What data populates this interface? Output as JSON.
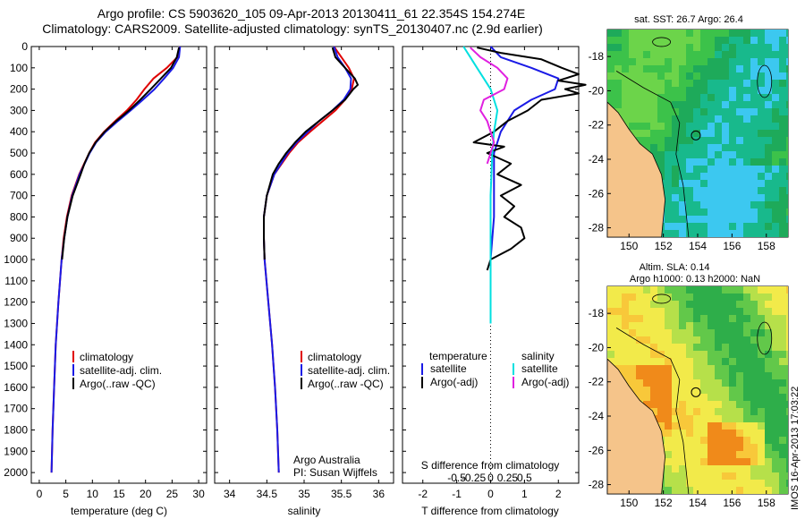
{
  "title_lines": [
    "Argo profile: CS 5903620_105 09-Apr-2013 20130411_61 22.354S 154.274E",
    "Climatology: CARS2009. Satellite-adjusted climatology: synTS_20130407.nc (2.9d earlier)"
  ],
  "colors": {
    "climatology": "#e00000",
    "satellite": "#1a1ae6",
    "argo": "#000000",
    "salinity_satellite": "#00e0e0",
    "salinity_argo": "#e020e0"
  },
  "chart_data": [
    {
      "type": "line",
      "panel": "temperature",
      "title": "",
      "xlabel": "temperature (deg C)",
      "ylabel": "",
      "xlim": [
        -1.5,
        31.5
      ],
      "ylim": [
        2050,
        0
      ],
      "xticks": [
        0,
        5,
        10,
        15,
        20,
        25,
        30
      ],
      "yticks": [
        0,
        100,
        200,
        300,
        400,
        500,
        600,
        700,
        800,
        900,
        1000,
        1100,
        1200,
        1300,
        1400,
        1500,
        1600,
        1700,
        1800,
        1900,
        2000
      ],
      "legend": [
        "climatology",
        "satellite-adj. clim.",
        "Argo(..raw -QC)"
      ],
      "series": [
        {
          "name": "climatology",
          "depth": [
            0,
            50,
            100,
            150,
            200,
            250,
            300,
            350,
            400,
            450,
            500,
            600,
            700,
            800,
            900,
            1000,
            1200,
            1400,
            1600,
            1800,
            2000
          ],
          "values": [
            26.5,
            26.0,
            24.0,
            21.5,
            19.8,
            18.3,
            16.5,
            14.3,
            12.2,
            10.5,
            9.4,
            7.5,
            6.1,
            5.2,
            4.6,
            4.2,
            3.6,
            3.1,
            2.8,
            2.5,
            2.3
          ]
        },
        {
          "name": "satellite-adj. clim.",
          "depth": [
            0,
            50,
            100,
            150,
            200,
            250,
            300,
            350,
            400,
            450,
            500,
            600,
            700,
            800,
            900,
            1000,
            1200,
            1400,
            1600,
            1800,
            2000
          ],
          "values": [
            26.5,
            26.3,
            25.2,
            23.5,
            21.7,
            19.5,
            17.2,
            14.8,
            12.5,
            10.7,
            9.5,
            7.6,
            6.2,
            5.3,
            4.7,
            4.2,
            3.6,
            3.1,
            2.8,
            2.5,
            2.3
          ]
        },
        {
          "name": "Argo(..raw -QC)",
          "depth": [
            5,
            50,
            100,
            150,
            200,
            250,
            300,
            350,
            400,
            450,
            500,
            550,
            600,
            700,
            800,
            900,
            1000
          ],
          "values": [
            26.3,
            25.9,
            24.8,
            22.9,
            21.0,
            19.0,
            16.9,
            14.5,
            12.3,
            10.6,
            9.4,
            8.5,
            7.8,
            6.3,
            5.3,
            4.7,
            4.3
          ]
        }
      ]
    },
    {
      "type": "line",
      "panel": "salinity",
      "title": "",
      "xlabel": "salinity",
      "ylabel": "",
      "xlim": [
        33.8,
        36.2
      ],
      "ylim": [
        2050,
        0
      ],
      "xticks": [
        34,
        34.5,
        35,
        35.5,
        36
      ],
      "legend": [
        "climatology",
        "satellite-adj. clim.",
        "Argo(..raw -QC)"
      ],
      "annotation": [
        "Argo Australia",
        "PI: Susan Wijffels"
      ],
      "series": [
        {
          "name": "climatology",
          "depth": [
            0,
            50,
            100,
            150,
            200,
            250,
            300,
            350,
            400,
            450,
            500,
            600,
            700,
            800,
            900,
            1000,
            1200,
            1400,
            1600,
            1800,
            2000
          ],
          "values": [
            35.4,
            35.5,
            35.6,
            35.67,
            35.64,
            35.55,
            35.42,
            35.25,
            35.08,
            34.92,
            34.8,
            34.6,
            34.5,
            34.46,
            34.46,
            34.47,
            34.52,
            34.57,
            34.61,
            34.64,
            34.66
          ]
        },
        {
          "name": "satellite-adj. clim.",
          "depth": [
            0,
            50,
            100,
            150,
            200,
            250,
            300,
            350,
            400,
            450,
            500,
            600,
            700,
            800,
            900,
            1000,
            1200,
            1400,
            1600,
            1800,
            2000
          ],
          "values": [
            35.4,
            35.45,
            35.55,
            35.63,
            35.62,
            35.53,
            35.38,
            35.2,
            35.05,
            34.9,
            34.78,
            34.6,
            34.5,
            34.46,
            34.46,
            34.47,
            34.52,
            34.57,
            34.61,
            34.64,
            34.66
          ]
        },
        {
          "name": "Argo(..raw -QC)",
          "depth": [
            5,
            50,
            100,
            150,
            180,
            200,
            250,
            300,
            350,
            400,
            450,
            500,
            550,
            600,
            700,
            800,
            900,
            1000
          ],
          "values": [
            35.38,
            35.42,
            35.55,
            35.68,
            35.72,
            35.66,
            35.55,
            35.38,
            35.2,
            35.02,
            34.88,
            34.76,
            34.66,
            34.58,
            34.5,
            34.46,
            34.46,
            34.47
          ]
        }
      ]
    },
    {
      "type": "line",
      "panel": "difference",
      "title": "",
      "xlabel": "T difference from climatology",
      "xlabel_top": "S difference from climatology",
      "xlim": [
        -2.6,
        2.6
      ],
      "ylim": [
        2050,
        0
      ],
      "xticks": [
        -2,
        -1,
        0,
        1,
        2
      ],
      "xticklabels": [
        "-2",
        "-1",
        "0",
        "1",
        "2"
      ],
      "xticks_s": [
        -1.0,
        -0.5,
        0,
        0.5,
        1.0
      ],
      "xticklabels_s": [
        "-0.5",
        "-0.25",
        "0",
        "0.25",
        "0.5"
      ],
      "legend_groups": [
        {
          "header": "temperature",
          "items": [
            "satellite",
            "Argo(-adj)"
          ]
        },
        {
          "header": "salinity",
          "items": [
            "satellite",
            "Argo(-adj)"
          ]
        }
      ],
      "series": [
        {
          "name": "temperature satellite",
          "depth": [
            0,
            50,
            100,
            150,
            200,
            250,
            300,
            350,
            400,
            450,
            500,
            600,
            700,
            800,
            900,
            1000,
            1200,
            1300
          ],
          "values": [
            0.0,
            0.3,
            1.2,
            2.0,
            1.9,
            1.2,
            0.7,
            0.5,
            0.3,
            0.2,
            0.1,
            0.1,
            0.1,
            0.1,
            0.05,
            0.0,
            0.0,
            0.0
          ]
        },
        {
          "name": "temperature Argo(-adj)",
          "depth": [
            5,
            30,
            60,
            100,
            130,
            160,
            180,
            200,
            220,
            250,
            300,
            350,
            400,
            450,
            470,
            500,
            550,
            600,
            650,
            700,
            750,
            800,
            850,
            900,
            950,
            1000,
            1050
          ],
          "values": [
            -0.4,
            0.3,
            1.5,
            2.1,
            2.6,
            2.0,
            2.8,
            2.2,
            2.6,
            1.5,
            1.1,
            0.5,
            0.1,
            -0.5,
            0.4,
            -0.1,
            0.6,
            0.2,
            0.9,
            0.3,
            0.7,
            0.4,
            0.9,
            1.0,
            0.6,
            0.0,
            -0.1
          ]
        },
        {
          "name": "salinity satellite",
          "depth": [
            0,
            50,
            100,
            150,
            200,
            250,
            300,
            350,
            400,
            500,
            700,
            1000,
            1300
          ],
          "values": [
            -0.8,
            -0.6,
            -0.4,
            -0.2,
            0.0,
            0.1,
            0.2,
            0.15,
            0.1,
            0.05,
            0.0,
            0.0,
            0.0
          ]
        },
        {
          "name": "salinity Argo(-adj)",
          "depth": [
            5,
            50,
            100,
            150,
            200,
            250,
            300,
            350,
            400,
            450,
            500,
            550
          ],
          "values": [
            -0.6,
            -0.3,
            0.2,
            0.5,
            0.4,
            -0.2,
            -0.3,
            -0.1,
            0.0,
            0.1,
            0.0,
            -0.1
          ]
        }
      ]
    }
  ],
  "maps": {
    "sst": {
      "title": "sat. SST: 26.7  Argo: 26.4",
      "xticks": [
        "150",
        "152",
        "154",
        "156",
        "158"
      ],
      "yticks": [
        "-18",
        "-20",
        "-22",
        "-24",
        "-26",
        "-28"
      ]
    },
    "sla": {
      "title_lines": [
        "Altim. SLA: 0.14",
        "Argo h1000: 0.13 h2000: NaN"
      ],
      "xticks": [
        "150",
        "152",
        "154",
        "156",
        "158"
      ],
      "yticks": [
        "-18",
        "-20",
        "-22",
        "-24",
        "-26",
        "-28"
      ]
    }
  },
  "footer_stamp": "IMOS 16-Apr-2013 17:03:22"
}
